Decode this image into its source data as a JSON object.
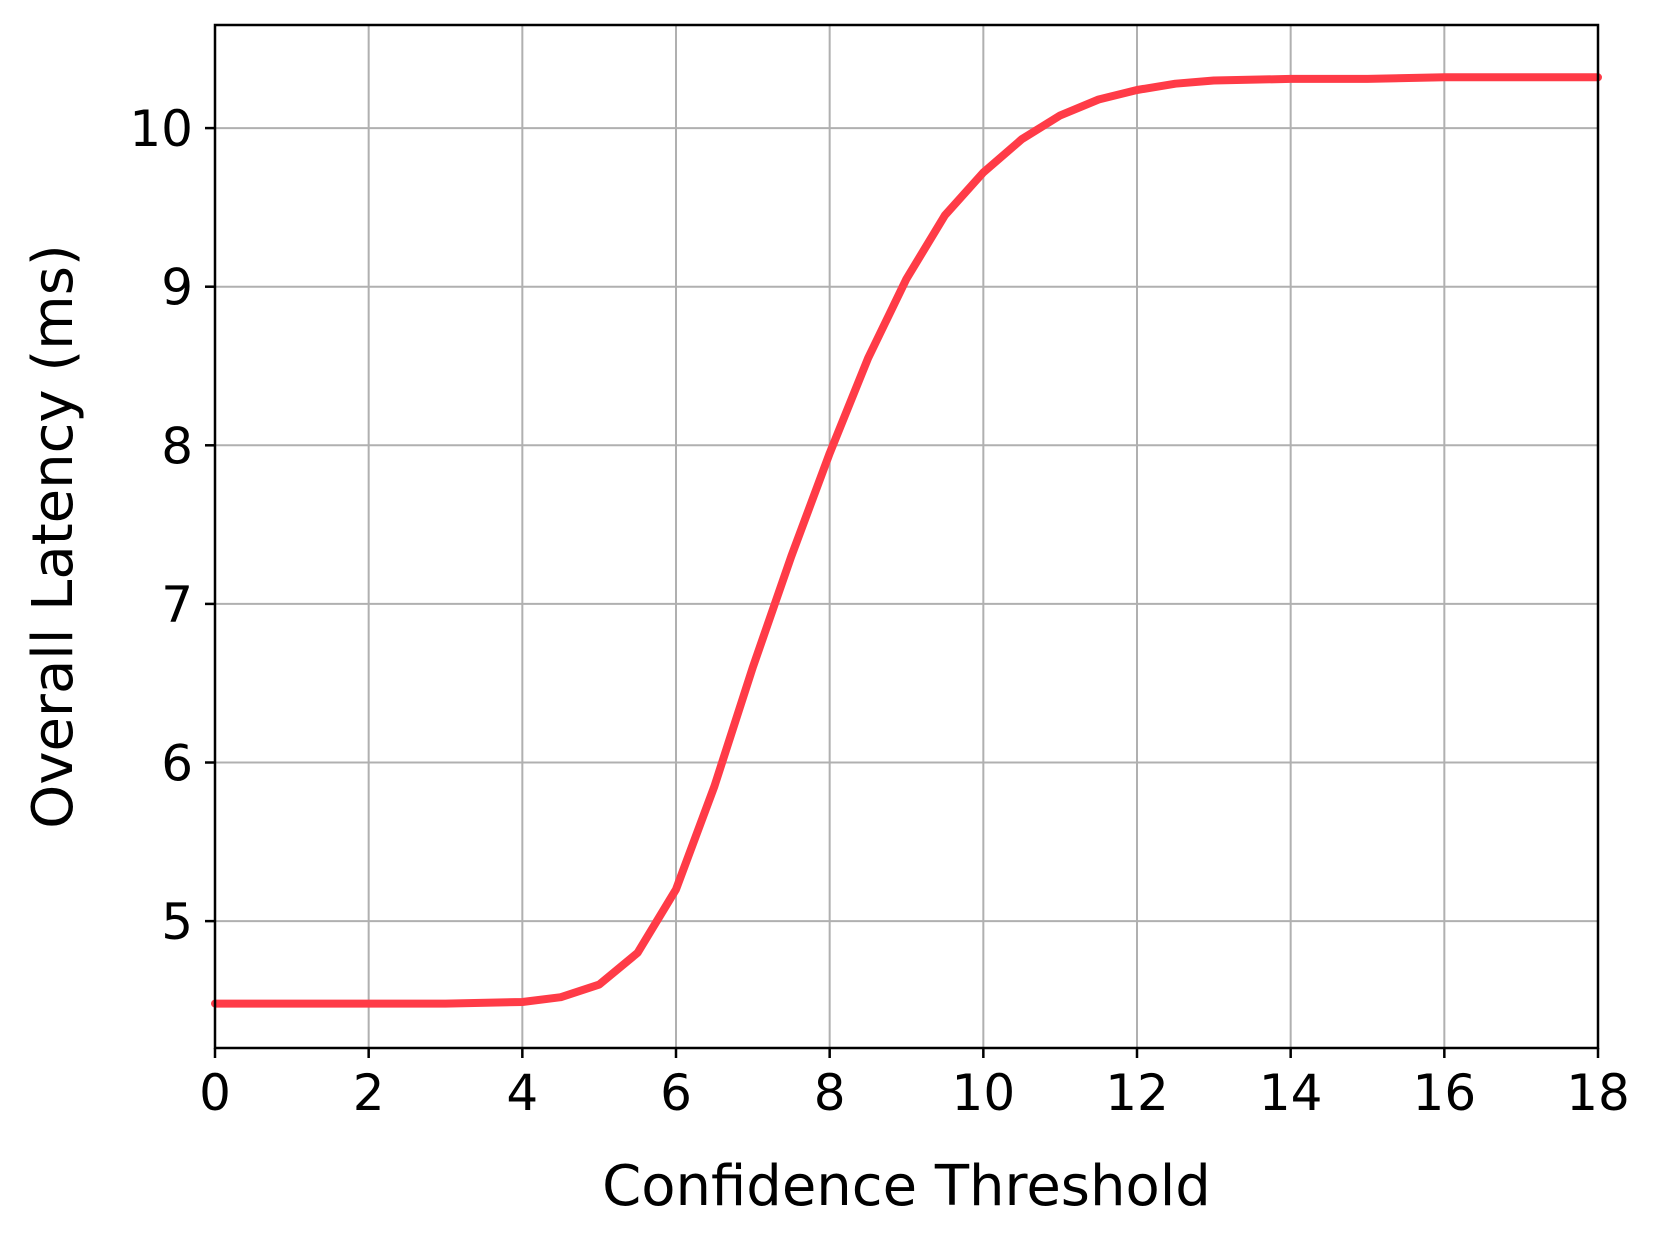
{
  "chart_data": {
    "type": "line",
    "title": "",
    "xlabel": "Confidence Threshold",
    "ylabel": "Overall Latency (ms)",
    "xlim": [
      0,
      18
    ],
    "ylim": [
      4.2,
      10.65
    ],
    "xticks": [
      0,
      2,
      4,
      6,
      8,
      10,
      12,
      14,
      16,
      18
    ],
    "yticks": [
      5,
      6,
      7,
      8,
      9,
      10
    ],
    "xtick_labels": [
      "0",
      "2",
      "4",
      "6",
      "8",
      "10",
      "12",
      "14",
      "16",
      "18"
    ],
    "ytick_labels": [
      "5",
      "6",
      "7",
      "8",
      "9",
      "10"
    ],
    "grid": true,
    "legend": "none",
    "series": [
      {
        "color": "#ff3b47",
        "x": [
          0,
          1,
          2,
          3,
          4,
          4.5,
          5,
          5.5,
          6,
          6.5,
          7,
          7.5,
          8,
          8.5,
          9,
          9.5,
          10,
          10.5,
          11,
          11.5,
          12,
          12.5,
          13,
          14,
          15,
          16,
          17,
          18
        ],
        "y": [
          4.48,
          4.48,
          4.48,
          4.48,
          4.49,
          4.52,
          4.6,
          4.8,
          5.2,
          5.85,
          6.6,
          7.3,
          7.95,
          8.55,
          9.05,
          9.45,
          9.72,
          9.93,
          10.08,
          10.18,
          10.24,
          10.28,
          10.3,
          10.31,
          10.31,
          10.32,
          10.32,
          10.32
        ]
      }
    ]
  }
}
